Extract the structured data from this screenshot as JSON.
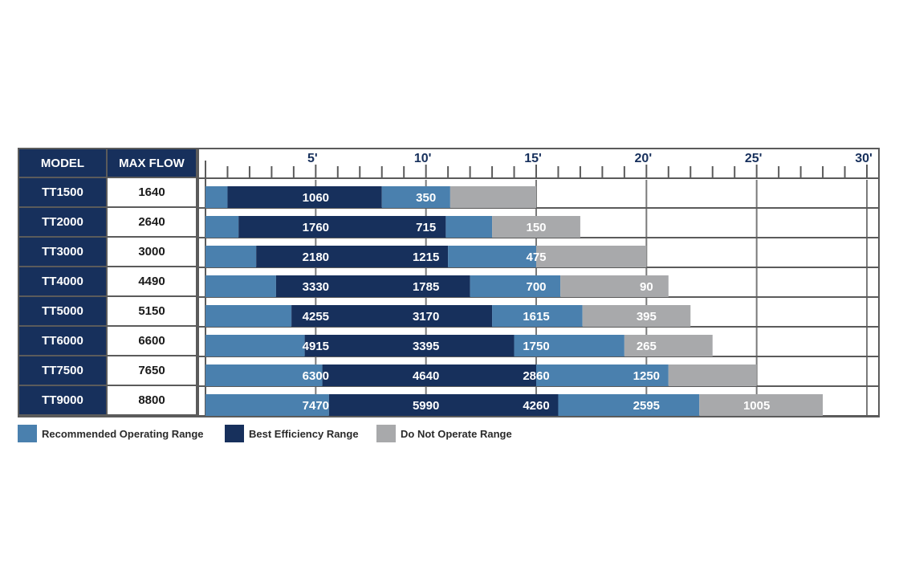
{
  "table": {
    "header_model": "MODEL",
    "header_flow": "MAX FLOW",
    "rows": [
      {
        "model": "TT1500",
        "max_flow": "1640"
      },
      {
        "model": "TT2000",
        "max_flow": "2640"
      },
      {
        "model": "TT3000",
        "max_flow": "3000"
      },
      {
        "model": "TT4000",
        "max_flow": "4490"
      },
      {
        "model": "TT5000",
        "max_flow": "5150"
      },
      {
        "model": "TT6000",
        "max_flow": "6600"
      },
      {
        "model": "TT7500",
        "max_flow": "7650"
      },
      {
        "model": "TT9000",
        "max_flow": "8800"
      }
    ]
  },
  "legend": [
    {
      "label": "Recommended Operating Range",
      "color": "#4a80ae"
    },
    {
      "label": "Best Efficiency Range",
      "color": "#17305c"
    },
    {
      "label": "Do Not Operate Range",
      "color": "#a8a9ab"
    }
  ],
  "chart_data": {
    "type": "bar",
    "orientation": "horizontal-stacked",
    "xlim": [
      0,
      30
    ],
    "x_ticks": [
      "5'",
      "10'",
      "15'",
      "20'",
      "25'",
      "30'"
    ],
    "x_tick_values": [
      5,
      10,
      15,
      20,
      25,
      30
    ],
    "minor_tick_step": 1,
    "categories": [
      "TT1500",
      "TT2000",
      "TT3000",
      "TT4000",
      "TT5000",
      "TT6000",
      "TT7500",
      "TT9000"
    ],
    "colors": {
      "recommended": "#4a80ae",
      "best": "#17305c",
      "do_not": "#a8a9ab"
    },
    "bars": [
      {
        "model": "TT1500",
        "segments": [
          {
            "range": "recommended",
            "from": 0,
            "to": 1
          },
          {
            "range": "best",
            "from": 1,
            "to": 8
          },
          {
            "range": "recommended",
            "from": 8,
            "to": 11.1
          },
          {
            "range": "do_not",
            "from": 11.1,
            "to": 15
          }
        ],
        "labels": [
          {
            "text": "1060",
            "at": 5
          },
          {
            "text": "350",
            "at": 10
          }
        ]
      },
      {
        "model": "TT2000",
        "segments": [
          {
            "range": "recommended",
            "from": 0,
            "to": 1.5
          },
          {
            "range": "best",
            "from": 1.5,
            "to": 10.9
          },
          {
            "range": "recommended",
            "from": 10.9,
            "to": 13
          },
          {
            "range": "do_not",
            "from": 13,
            "to": 17
          }
        ],
        "labels": [
          {
            "text": "1760",
            "at": 5
          },
          {
            "text": "715",
            "at": 10
          },
          {
            "text": "150",
            "at": 15
          }
        ]
      },
      {
        "model": "TT3000",
        "segments": [
          {
            "range": "recommended",
            "from": 0,
            "to": 2.3
          },
          {
            "range": "best",
            "from": 2.3,
            "to": 11
          },
          {
            "range": "recommended",
            "from": 11,
            "to": 15
          },
          {
            "range": "do_not",
            "from": 15,
            "to": 20
          }
        ],
        "labels": [
          {
            "text": "2180",
            "at": 5
          },
          {
            "text": "1215",
            "at": 10
          },
          {
            "text": "475",
            "at": 15
          }
        ]
      },
      {
        "model": "TT4000",
        "segments": [
          {
            "range": "recommended",
            "from": 0,
            "to": 3.2
          },
          {
            "range": "best",
            "from": 3.2,
            "to": 12
          },
          {
            "range": "recommended",
            "from": 12,
            "to": 16.1
          },
          {
            "range": "do_not",
            "from": 16.1,
            "to": 21
          }
        ],
        "labels": [
          {
            "text": "3330",
            "at": 5
          },
          {
            "text": "1785",
            "at": 10
          },
          {
            "text": "700",
            "at": 15
          },
          {
            "text": "90",
            "at": 20
          }
        ]
      },
      {
        "model": "TT5000",
        "segments": [
          {
            "range": "recommended",
            "from": 0,
            "to": 3.9
          },
          {
            "range": "best",
            "from": 3.9,
            "to": 13
          },
          {
            "range": "recommended",
            "from": 13,
            "to": 17.1
          },
          {
            "range": "do_not",
            "from": 17.1,
            "to": 22
          }
        ],
        "labels": [
          {
            "text": "4255",
            "at": 5
          },
          {
            "text": "3170",
            "at": 10
          },
          {
            "text": "1615",
            "at": 15
          },
          {
            "text": "395",
            "at": 20
          }
        ]
      },
      {
        "model": "TT6000",
        "segments": [
          {
            "range": "recommended",
            "from": 0,
            "to": 4.5
          },
          {
            "range": "best",
            "from": 4.5,
            "to": 14
          },
          {
            "range": "recommended",
            "from": 14,
            "to": 19
          },
          {
            "range": "do_not",
            "from": 19,
            "to": 23
          }
        ],
        "labels": [
          {
            "text": "4915",
            "at": 5
          },
          {
            "text": "3395",
            "at": 10
          },
          {
            "text": "1750",
            "at": 15
          },
          {
            "text": "265",
            "at": 20
          }
        ]
      },
      {
        "model": "TT7500",
        "segments": [
          {
            "range": "recommended",
            "from": 0,
            "to": 5.3
          },
          {
            "range": "best",
            "from": 5.3,
            "to": 15
          },
          {
            "range": "recommended",
            "from": 15,
            "to": 21
          },
          {
            "range": "do_not",
            "from": 21,
            "to": 25
          }
        ],
        "labels": [
          {
            "text": "6300",
            "at": 5
          },
          {
            "text": "4640",
            "at": 10
          },
          {
            "text": "2860",
            "at": 15
          },
          {
            "text": "1250",
            "at": 20
          }
        ]
      },
      {
        "model": "TT9000",
        "segments": [
          {
            "range": "recommended",
            "from": 0,
            "to": 5.6
          },
          {
            "range": "best",
            "from": 5.6,
            "to": 16
          },
          {
            "range": "recommended",
            "from": 16,
            "to": 22.4
          },
          {
            "range": "do_not",
            "from": 22.4,
            "to": 28
          }
        ],
        "labels": [
          {
            "text": "7470",
            "at": 5
          },
          {
            "text": "5990",
            "at": 10
          },
          {
            "text": "4260",
            "at": 15
          },
          {
            "text": "2595",
            "at": 20
          },
          {
            "text": "1005",
            "at": 25
          }
        ]
      }
    ]
  }
}
